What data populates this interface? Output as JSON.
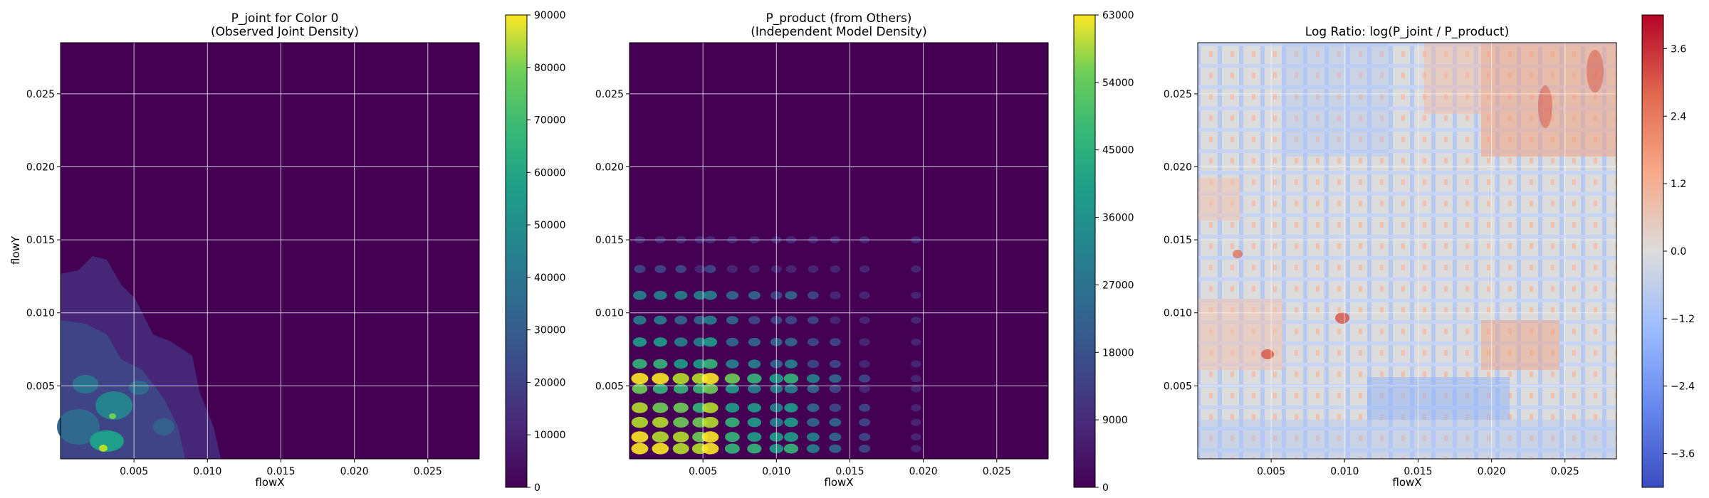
{
  "chart_data": [
    {
      "type": "heatmap",
      "title": "P_joint for Color 0\n(Observed Joint Density)",
      "xlabel": "flowX",
      "ylabel": "flowY",
      "xlim": [
        0.0,
        0.0285
      ],
      "ylim": [
        0.0,
        0.0285
      ],
      "x_ticks": [
        0.005,
        0.01,
        0.015,
        0.02,
        0.025
      ],
      "y_ticks": [
        0.005,
        0.01,
        0.015,
        0.02,
        0.025
      ],
      "grid": true,
      "colormap": "viridis",
      "colorbar": {
        "min": 0,
        "max": 90000,
        "ticks": [
          0,
          10000,
          20000,
          30000,
          40000,
          50000,
          60000,
          70000,
          80000,
          90000
        ]
      }
    },
    {
      "type": "heatmap",
      "title": "P_product (from Others)\n(Independent Model Density)",
      "xlabel": "flowX",
      "ylabel": "",
      "xlim": [
        0.0,
        0.0285
      ],
      "ylim": [
        0.0,
        0.0285
      ],
      "x_ticks": [
        0.005,
        0.01,
        0.015,
        0.02,
        0.025
      ],
      "y_ticks": [
        0.005,
        0.01,
        0.015,
        0.02,
        0.025
      ],
      "grid": true,
      "colormap": "viridis",
      "colorbar": {
        "min": 0,
        "max": 63000,
        "ticks": [
          0,
          9000,
          18000,
          27000,
          36000,
          45000,
          54000,
          63000
        ]
      }
    },
    {
      "type": "heatmap",
      "title": "Log Ratio: log(P_joint / P_product)",
      "xlabel": "flowX",
      "ylabel": "",
      "xlim": [
        0.0,
        0.0285
      ],
      "ylim": [
        0.0,
        0.0285
      ],
      "x_ticks": [
        0.005,
        0.01,
        0.015,
        0.02,
        0.025
      ],
      "y_ticks": [
        0.005,
        0.01,
        0.015,
        0.02,
        0.025
      ],
      "grid": true,
      "colormap": "coolwarm",
      "colorbar": {
        "min": -4.2,
        "max": 4.2,
        "ticks": [
          -3.6,
          -2.4,
          -1.2,
          0.0,
          1.2,
          2.4,
          3.6
        ]
      }
    }
  ]
}
